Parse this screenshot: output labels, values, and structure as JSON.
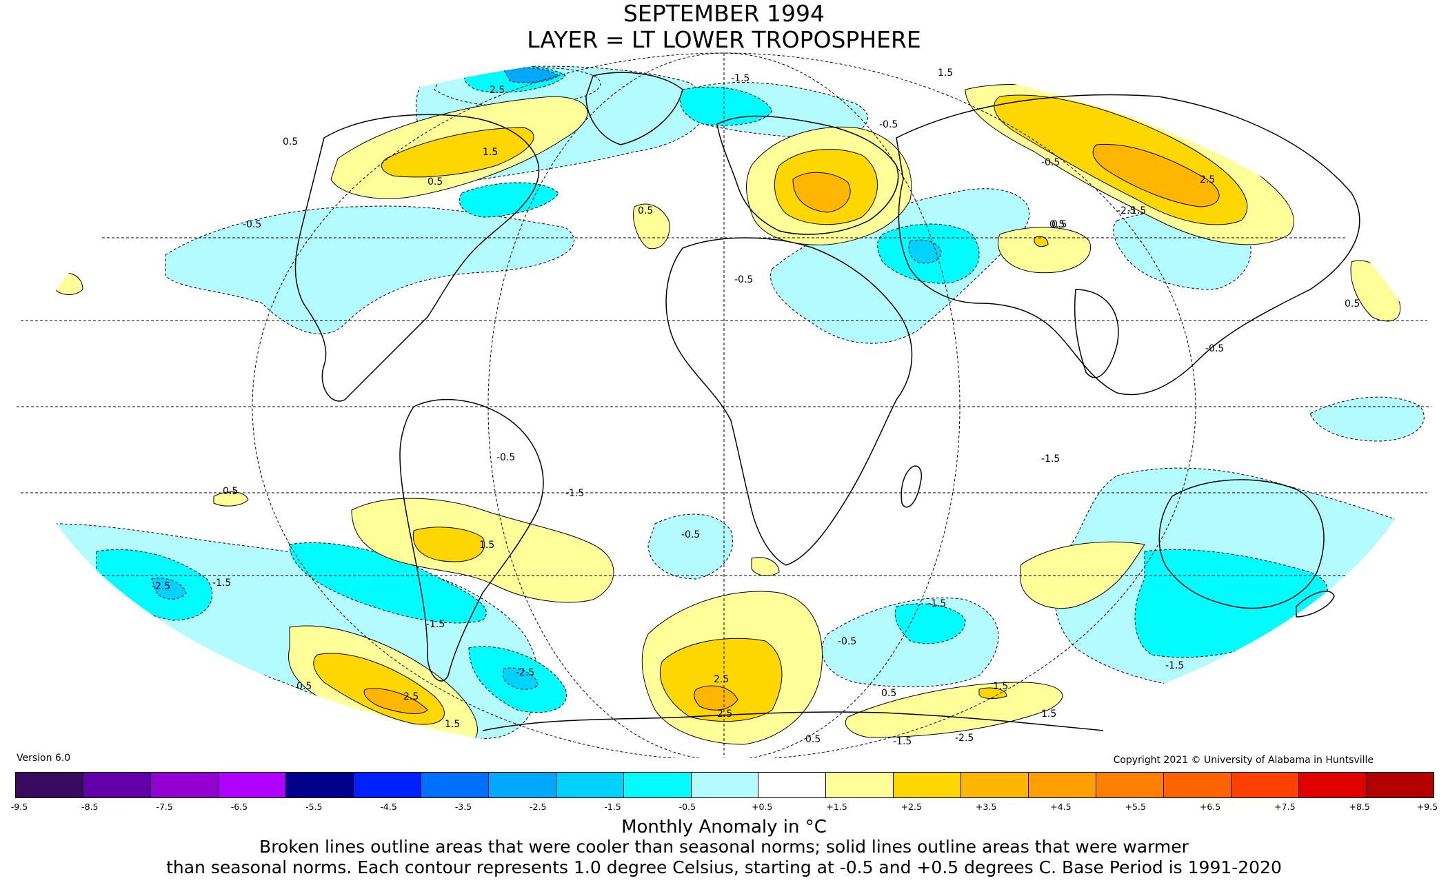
{
  "title": {
    "line1": "SEPTEMBER 1994",
    "line2": "LAYER = LT LOWER TROPOSPHERE"
  },
  "version": "Version 6.0",
  "copyright": "Copyright 2021 © University of Alabama in Huntsville",
  "colorbar": {
    "ticks": [
      "-9.5",
      "-8.5",
      "-7.5",
      "-6.5",
      "-5.5",
      "-4.5",
      "-3.5",
      "-2.5",
      "-1.5",
      "-0.5",
      "+0.5",
      "+1.5",
      "+2.5",
      "+3.5",
      "+4.5",
      "+5.5",
      "+6.5",
      "+7.5",
      "+8.5",
      "+9.5"
    ],
    "colors": [
      "#3a0a5e",
      "#6200aa",
      "#9400d3",
      "#b000ff",
      "#00008b",
      "#0021ff",
      "#0070ff",
      "#00a8ff",
      "#00d2ff",
      "#00fcff",
      "#b4fbff",
      "#ffffff",
      "#ffff9a",
      "#ffd700",
      "#ffb600",
      "#ffa000",
      "#ff8000",
      "#ff6400",
      "#ff4000",
      "#e10000",
      "#b30000"
    ]
  },
  "unit_label": "Monthly Anomaly in °C",
  "footnote": {
    "line1": "Broken lines outline areas that were cooler than seasonal norms; solid lines outline areas that were warmer",
    "line2": "than seasonal norms. Each contour represents 1.0 degree Celsius, starting at -0.5 and +0.5 degrees C. Base Period is 1991-2020"
  },
  "map_data": {
    "projection": "Mollweide",
    "contour_labels": [
      "0.5",
      "-0.5",
      "1.5",
      "-1.5",
      "2.5",
      "-2.5",
      "0.5",
      "-0.5",
      "1.5",
      "-1.5",
      "2.5",
      "-2.5",
      "0.5",
      "-0.5",
      "0.5",
      "-0.5",
      "0.5",
      "-0.5",
      "0.5",
      "-0.5",
      "-1.5",
      "1.5",
      "-1.5",
      "2.5",
      "2.5",
      "-2.5",
      "0.5",
      "-0.5",
      "1.5",
      "-1.5",
      "2.5",
      "-1.5",
      "0.5",
      "-0.5",
      "-1.5",
      "1.5",
      "-1.5",
      "-2.5",
      "0.5",
      "1.5",
      "-1.5",
      "0.5"
    ],
    "anomaly_colors": {
      "cool1": "#b4fbff",
      "cool2": "#00fcff",
      "cool3": "#00d2ff",
      "cool4": "#00a8ff",
      "cool5": "#0070ff",
      "warm1": "#ffff9a",
      "warm2": "#ffd700",
      "warm3": "#ffb600"
    }
  }
}
